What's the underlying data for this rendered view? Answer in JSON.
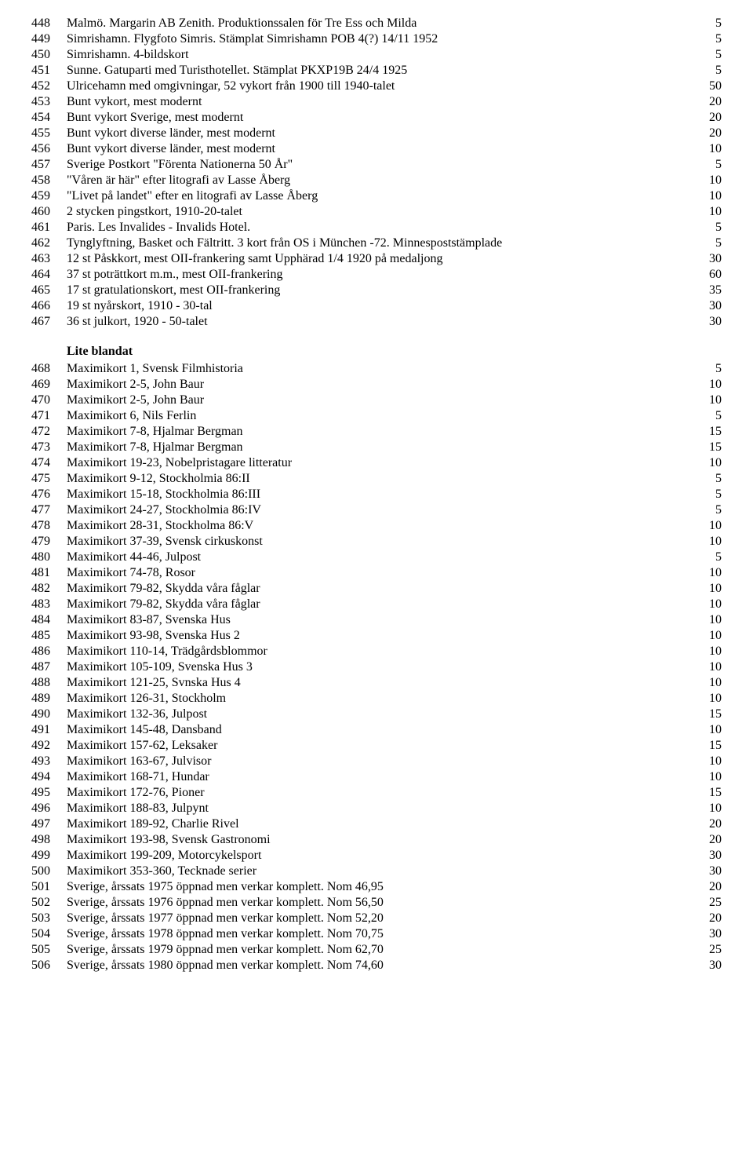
{
  "group1": [
    {
      "n": "448",
      "d": "Malmö. Margarin AB Zenith. Produktionssalen för Tre Ess och Milda",
      "p": "5"
    },
    {
      "n": "449",
      "d": "Simrishamn. Flygfoto Simris. Stämplat Simrishamn POB 4(?) 14/11 1952",
      "p": "5"
    },
    {
      "n": "450",
      "d": "Simrishamn. 4-bildskort",
      "p": "5"
    },
    {
      "n": "451",
      "d": "Sunne. Gatuparti med Turisthotellet. Stämplat PKXP19B 24/4 1925",
      "p": "5"
    },
    {
      "n": "452",
      "d": "Ulricehamn med omgivningar, 52 vykort från 1900 till 1940-talet",
      "p": "50"
    },
    {
      "n": "453",
      "d": "Bunt vykort, mest modernt",
      "p": "20"
    },
    {
      "n": "454",
      "d": "Bunt vykort Sverige, mest modernt",
      "p": "20"
    },
    {
      "n": "455",
      "d": "Bunt vykort diverse länder, mest modernt",
      "p": "20"
    },
    {
      "n": "456",
      "d": "Bunt vykort diverse länder, mest modernt",
      "p": "10"
    },
    {
      "n": "457",
      "d": "Sverige Postkort \"Förenta Nationerna 50 År\"",
      "p": "5"
    },
    {
      "n": "458",
      "d": "\"Våren är här\" efter litografi av Lasse Åberg",
      "p": "10"
    },
    {
      "n": "459",
      "d": "\"Livet på landet\" efter en litografi av Lasse Åberg",
      "p": "10"
    },
    {
      "n": "460",
      "d": "2 stycken pingstkort, 1910-20-talet",
      "p": "10"
    },
    {
      "n": "461",
      "d": "Paris. Les Invalides - Invalids Hotel.",
      "p": "5"
    },
    {
      "n": "462",
      "d": "Tynglyftning, Basket och Fältritt. 3 kort från OS i München -72. Minnespoststämplade",
      "p": "5"
    },
    {
      "n": "463",
      "d": "12 st Påskkort, mest OII-frankering samt Upphärad 1/4 1920 på medaljong",
      "p": "30"
    },
    {
      "n": "464",
      "d": "37 st poträttkort m.m., mest OII-frankering",
      "p": "60"
    },
    {
      "n": "465",
      "d": "17 st gratulationskort, mest OII-frankering",
      "p": "35"
    },
    {
      "n": "466",
      "d": "19 st nyårskort, 1910 - 30-tal",
      "p": "30"
    },
    {
      "n": "467",
      "d": "36 st julkort, 1920 - 50-talet",
      "p": "30"
    }
  ],
  "section2_title": "Lite blandat",
  "group2": [
    {
      "n": "468",
      "d": "Maximikort 1, Svensk Filmhistoria",
      "p": "5"
    },
    {
      "n": "469",
      "d": "Maximikort 2-5, John Baur",
      "p": "10"
    },
    {
      "n": "470",
      "d": "Maximikort 2-5, John Baur",
      "p": "10"
    },
    {
      "n": "471",
      "d": "Maximikort 6, Nils Ferlin",
      "p": "5"
    },
    {
      "n": "472",
      "d": "Maximikort 7-8, Hjalmar Bergman",
      "p": "15"
    },
    {
      "n": "473",
      "d": "Maximikort 7-8, Hjalmar Bergman",
      "p": "15"
    },
    {
      "n": "474",
      "d": "Maximikort 19-23, Nobelpristagare litteratur",
      "p": "10"
    },
    {
      "n": "475",
      "d": "Maximikort 9-12, Stockholmia 86:II",
      "p": "5"
    },
    {
      "n": "476",
      "d": "Maximikort 15-18, Stockholmia 86:III",
      "p": "5"
    },
    {
      "n": "477",
      "d": "Maximikort 24-27, Stockholmia 86:IV",
      "p": "5"
    },
    {
      "n": "478",
      "d": "Maximikort 28-31, Stockholma 86:V",
      "p": "10"
    },
    {
      "n": "479",
      "d": "Maximikort 37-39, Svensk cirkuskonst",
      "p": "10"
    },
    {
      "n": "480",
      "d": "Maximikort 44-46, Julpost",
      "p": "5"
    },
    {
      "n": "481",
      "d": "Maximikort 74-78, Rosor",
      "p": "10"
    },
    {
      "n": "482",
      "d": "Maximikort 79-82, Skydda våra fåglar",
      "p": "10"
    },
    {
      "n": "483",
      "d": "Maximikort 79-82, Skydda våra fåglar",
      "p": "10"
    },
    {
      "n": "484",
      "d": "Maximikort 83-87, Svenska Hus",
      "p": "10"
    },
    {
      "n": "485",
      "d": "Maximikort 93-98, Svenska Hus 2",
      "p": "10"
    },
    {
      "n": "486",
      "d": "Maximikort 110-14, Trädgårdsblommor",
      "p": "10"
    },
    {
      "n": "487",
      "d": "Maximikort 105-109, Svenska Hus 3",
      "p": "10"
    },
    {
      "n": "488",
      "d": "Maximikort 121-25, Svnska Hus 4",
      "p": "10"
    },
    {
      "n": "489",
      "d": "Maximikort 126-31, Stockholm",
      "p": "10"
    },
    {
      "n": "490",
      "d": "Maximikort 132-36, Julpost",
      "p": "15"
    },
    {
      "n": "491",
      "d": "Maximikort 145-48, Dansband",
      "p": "10"
    },
    {
      "n": "492",
      "d": "Maximikort 157-62, Leksaker",
      "p": "15"
    },
    {
      "n": "493",
      "d": "Maximikort 163-67, Julvisor",
      "p": "10"
    },
    {
      "n": "494",
      "d": "Maximikort 168-71, Hundar",
      "p": "10"
    },
    {
      "n": "495",
      "d": "Maximikort 172-76, Pioner",
      "p": "15"
    },
    {
      "n": "496",
      "d": "Maximikort 188-83, Julpynt",
      "p": "10"
    },
    {
      "n": "497",
      "d": "Maximikort 189-92, Charlie Rivel",
      "p": "20"
    },
    {
      "n": "498",
      "d": "Maximikort 193-98, Svensk Gastronomi",
      "p": "20"
    },
    {
      "n": "499",
      "d": "Maximikort 199-209, Motorcykelsport",
      "p": "30"
    },
    {
      "n": "500",
      "d": "Maximikort 353-360, Tecknade serier",
      "p": "30"
    },
    {
      "n": "501",
      "d": "Sverige, årssats 1975 öppnad men verkar komplett. Nom 46,95",
      "p": "20"
    },
    {
      "n": "502",
      "d": "Sverige, årssats 1976 öppnad men verkar komplett. Nom 56,50",
      "p": "25"
    },
    {
      "n": "503",
      "d": "Sverige, årssats 1977 öppnad men verkar komplett. Nom 52,20",
      "p": "20"
    },
    {
      "n": "504",
      "d": "Sverige, årssats 1978 öppnad men verkar komplett. Nom 70,75",
      "p": "30"
    },
    {
      "n": "505",
      "d": "Sverige, årssats 1979 öppnad men verkar komplett. Nom 62,70",
      "p": "25"
    },
    {
      "n": "506",
      "d": "Sverige, årssats 1980 öppnad men verkar komplett. Nom 74,60",
      "p": "30"
    }
  ]
}
